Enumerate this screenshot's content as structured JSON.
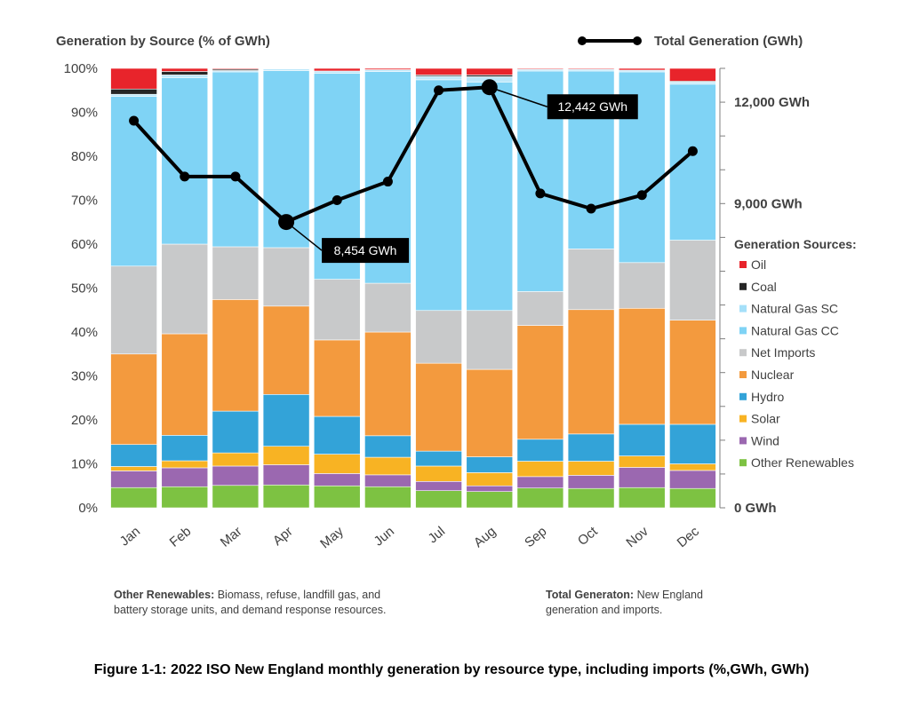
{
  "chart_data": {
    "type": "bar",
    "stacked": true,
    "title": "",
    "ylabel_left": "Generation by Source (% of GWh)",
    "ylim_left": [
      0,
      100
    ],
    "yticks_left": [
      "0%",
      "10%",
      "20%",
      "30%",
      "40%",
      "50%",
      "60%",
      "70%",
      "80%",
      "90%",
      "100%"
    ],
    "ylim_right_gwh": [
      0,
      13000
    ],
    "yticks_right": [
      {
        "value": 0,
        "label": "0 GWh"
      },
      {
        "value": 9000,
        "label": "9,000 GWh"
      },
      {
        "value": 12000,
        "label": "12,000 GWh"
      }
    ],
    "categories": [
      "Jan",
      "Feb",
      "Mar",
      "Apr",
      "May",
      "Jun",
      "Jul",
      "Aug",
      "Sep",
      "Oct",
      "Nov",
      "Dec"
    ],
    "series": [
      {
        "name": "Other Renewables",
        "color": "#7DC242",
        "values": [
          4.6,
          4.8,
          5.1,
          5.2,
          5.0,
          4.8,
          3.9,
          3.7,
          4.5,
          4.4,
          4.6,
          4.4
        ]
      },
      {
        "name": "Wind",
        "color": "#9B68B0",
        "values": [
          3.8,
          4.3,
          4.4,
          4.6,
          2.8,
          2.7,
          2.1,
          1.3,
          2.6,
          3.0,
          4.6,
          4.1
        ]
      },
      {
        "name": "Solar",
        "color": "#F8B323",
        "values": [
          1.0,
          1.6,
          3.0,
          4.2,
          4.4,
          4.0,
          3.5,
          3.0,
          3.5,
          3.2,
          2.6,
          1.5
        ]
      },
      {
        "name": "Hydro",
        "color": "#33A3D8",
        "values": [
          5.0,
          5.8,
          9.5,
          11.8,
          8.6,
          4.9,
          3.4,
          3.6,
          5.0,
          6.2,
          7.2,
          9.0
        ]
      },
      {
        "name": "Nuclear",
        "color": "#F39A3E",
        "values": [
          20.6,
          23.1,
          25.4,
          20.1,
          17.4,
          23.6,
          20.0,
          19.9,
          25.9,
          28.3,
          26.4,
          23.7
        ]
      },
      {
        "name": "Net Imports",
        "color": "#C8C9CA",
        "values": [
          20.0,
          20.4,
          12.0,
          13.3,
          13.8,
          11.1,
          12.0,
          13.4,
          7.7,
          13.8,
          10.4,
          18.2
        ]
      },
      {
        "name": "Natural Gas CC",
        "color": "#7FD3F5",
        "values": [
          38.6,
          37.9,
          39.8,
          40.3,
          46.9,
          48.2,
          52.5,
          52.0,
          50.2,
          40.5,
          43.4,
          35.5
        ]
      },
      {
        "name": "Natural Gas SC",
        "color": "#BEE8FA",
        "values": [
          0.5,
          0.6,
          0.3,
          0.4,
          0.5,
          0.4,
          0.8,
          1.2,
          0.4,
          0.4,
          0.4,
          0.5
        ]
      },
      {
        "name": "Coal",
        "color": "#262626",
        "values": [
          1.2,
          0.8,
          0.3,
          0.0,
          0.0,
          0.0,
          0.3,
          0.4,
          0.0,
          0.0,
          0.0,
          0.2
        ]
      },
      {
        "name": "Oil",
        "color": "#E8242B",
        "values": [
          4.7,
          0.7,
          0.2,
          0.1,
          0.6,
          0.3,
          1.5,
          1.5,
          0.2,
          0.2,
          0.4,
          2.9
        ]
      }
    ],
    "line_series": {
      "name": "Total Generation (GWh)",
      "color": "#000000",
      "values": [
        11450,
        9800,
        9800,
        8454,
        9100,
        9650,
        12350,
        12442,
        9300,
        8850,
        9250,
        10550
      ]
    },
    "callouts": [
      {
        "month": "Apr",
        "label": "8,454 GWh"
      },
      {
        "month": "Aug",
        "label": "12,442 GWh"
      }
    ],
    "legend": {
      "title": "Generation Sources:",
      "placement": "right",
      "items": [
        "Oil",
        "Coal",
        "Natural Gas SC",
        "Natural Gas CC",
        "Net Imports",
        "Nuclear",
        "Hydro",
        "Solar",
        "Wind",
        "Other Renewables"
      ]
    },
    "line_legend": "Total Generation (GWh)",
    "grid": false
  },
  "notes": {
    "left_title": "Other Renewables:",
    "left_text_1": " Biomass, refuse, landfill gas, and",
    "left_text_2": "battery storage units, and demand response resources.",
    "right_title": "Total Generaton:",
    "right_text_1": " New England",
    "right_text_2": "generation and imports."
  },
  "caption": "Figure 1-1: 2022 ISO New England monthly generation by resource type, including imports (%,GWh, GWh)"
}
